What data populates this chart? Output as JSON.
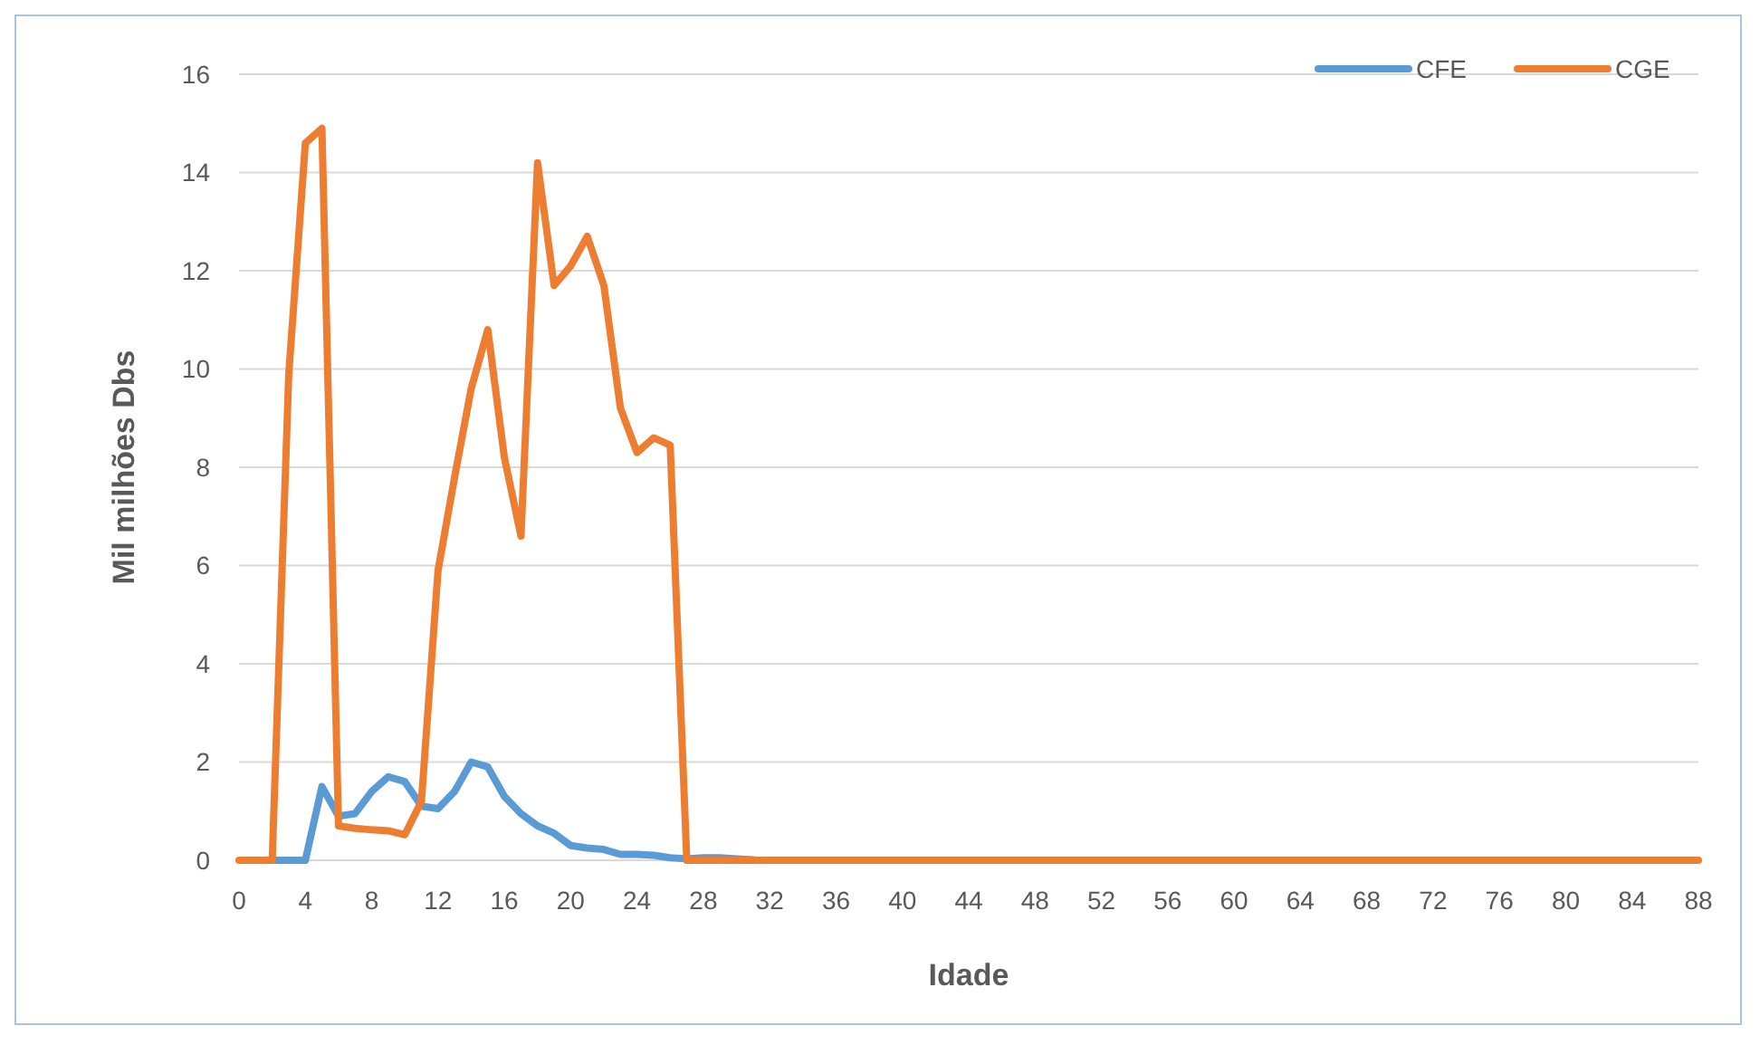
{
  "chart_data": {
    "type": "line",
    "xlabel": "Idade",
    "ylabel": "Mil milhões Dbs",
    "x": [
      0,
      1,
      2,
      3,
      4,
      5,
      6,
      7,
      8,
      9,
      10,
      11,
      12,
      13,
      14,
      15,
      16,
      17,
      18,
      19,
      20,
      21,
      22,
      23,
      24,
      25,
      26,
      27,
      28,
      29,
      30,
      31,
      32,
      33,
      34,
      35,
      36,
      37,
      38,
      39,
      40,
      41,
      42,
      43,
      44,
      45,
      46,
      47,
      48,
      49,
      50,
      51,
      52,
      53,
      54,
      55,
      56,
      57,
      58,
      59,
      60,
      61,
      62,
      63,
      64,
      65,
      66,
      67,
      68,
      69,
      70,
      71,
      72,
      73,
      74,
      75,
      76,
      77,
      78,
      79,
      80,
      81,
      82,
      83,
      84,
      85,
      86,
      87,
      88
    ],
    "series": [
      {
        "name": "CFE",
        "color": "#5b9bd5",
        "values": [
          null,
          null,
          0,
          0,
          0,
          1.5,
          0.9,
          0.95,
          1.4,
          1.7,
          1.6,
          1.1,
          1.05,
          1.4,
          2.0,
          1.9,
          1.3,
          0.95,
          0.7,
          0.55,
          0.3,
          0.25,
          0.22,
          0.12,
          0.12,
          0.1,
          0.05,
          0.03,
          0.05,
          0.05,
          0.03,
          0.01,
          null,
          null,
          null,
          null,
          null,
          null,
          null,
          null,
          null,
          null,
          null,
          null,
          null,
          null,
          null,
          null,
          null,
          null,
          null,
          null,
          null,
          null,
          null,
          null,
          null,
          null,
          null,
          null,
          null,
          null,
          null,
          null,
          null,
          null,
          null,
          null,
          null,
          null,
          null,
          null,
          null,
          null,
          null,
          null,
          null,
          null,
          null,
          null,
          null,
          null,
          null,
          null,
          null,
          null,
          null,
          null,
          null
        ]
      },
      {
        "name": "CGE",
        "color": "#ed7d31",
        "values": [
          0,
          0,
          0,
          9.9,
          14.6,
          14.9,
          0.7,
          0.65,
          0.62,
          0.6,
          0.52,
          1.2,
          5.9,
          7.8,
          9.6,
          10.8,
          8.2,
          6.6,
          14.2,
          11.7,
          12.1,
          12.7,
          11.7,
          9.2,
          8.3,
          8.6,
          8.45,
          0,
          0,
          0,
          0,
          0,
          0,
          0,
          0,
          0,
          0,
          0,
          0,
          0,
          0,
          0,
          0,
          0,
          0,
          0,
          0,
          0,
          0,
          0,
          0,
          0,
          0,
          0,
          0,
          0,
          0,
          0,
          0,
          0,
          0,
          0,
          0,
          0,
          0,
          0,
          0,
          0,
          0,
          0,
          0,
          0,
          0,
          0,
          0,
          0,
          0,
          0,
          0,
          0,
          0,
          0,
          0,
          0,
          0,
          0,
          0,
          0,
          0
        ]
      }
    ],
    "xlim": [
      0,
      88
    ],
    "xticks": [
      0,
      4,
      8,
      12,
      16,
      20,
      24,
      28,
      32,
      36,
      40,
      44,
      48,
      52,
      56,
      60,
      64,
      68,
      72,
      76,
      80,
      84,
      88
    ],
    "ylim": [
      0,
      16
    ],
    "yticks": [
      0,
      2,
      4,
      6,
      8,
      10,
      12,
      14,
      16
    ],
    "grid": "y",
    "legend": "top right",
    "line_style": "solid",
    "marker": "none"
  }
}
